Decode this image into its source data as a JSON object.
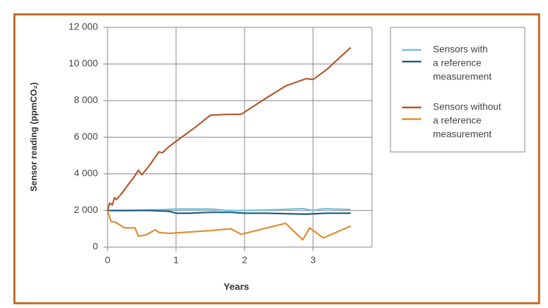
{
  "chart_data": {
    "type": "line",
    "y_label": "Sensor reading (ppmCO₂)",
    "x_label": "Years",
    "xlim": [
      0,
      3.86
    ],
    "xticks": [
      0,
      1,
      2,
      3
    ],
    "ylim": [
      0,
      12000
    ],
    "yticks": [
      0,
      {
        "value": 2000,
        "label": "2 000"
      },
      {
        "value": 4000,
        "label": "4 000"
      },
      {
        "value": 6000,
        "label": "6 000"
      },
      {
        "value": 8000,
        "label": "8 000"
      },
      {
        "value": 10000,
        "label": "10 000"
      },
      {
        "value": 12000,
        "label": "12 000"
      }
    ],
    "grid": true,
    "groups": [
      {
        "name_lines": [
          "Sensors with",
          "a reference",
          "measurement"
        ],
        "series": [
          {
            "color": "#6ec1dc",
            "x": [
              0,
              0.2,
              0.5,
              0.8,
              1.0,
              1.5,
              1.75,
              2.0,
              2.5,
              2.85,
              3.0,
              3.15,
              3.55
            ],
            "values": [
              2000,
              1980,
              2020,
              2050,
              2080,
              2080,
              2000,
              2000,
              2050,
              2100,
              2000,
              2100,
              2050
            ]
          },
          {
            "color": "#1d5a84",
            "x": [
              0,
              0.3,
              0.6,
              0.9,
              1.0,
              1.2,
              1.5,
              1.8,
              2.0,
              2.3,
              2.9,
              3.2,
              3.55
            ],
            "values": [
              2000,
              2000,
              2000,
              1950,
              1850,
              1850,
              1900,
              1900,
              1850,
              1850,
              1800,
              1850,
              1850
            ]
          }
        ]
      },
      {
        "name_lines": [
          "Sensors without",
          "a reference",
          "measurement"
        ],
        "series": [
          {
            "color": "#b5552a",
            "x": [
              0,
              0.03,
              0.07,
              0.1,
              0.13,
              0.2,
              0.3,
              0.4,
              0.45,
              0.5,
              0.6,
              0.75,
              0.8,
              0.9,
              1.3,
              1.5,
              1.75,
              1.95,
              2.3,
              2.6,
              2.9,
              3.0,
              3.2,
              3.55
            ],
            "values": [
              2000,
              2400,
              2300,
              2700,
              2600,
              2900,
              3400,
              3900,
              4200,
              3950,
              4400,
              5200,
              5150,
              5500,
              6600,
              7200,
              7250,
              7250,
              8100,
              8800,
              9200,
              9150,
              9700,
              10900
            ]
          },
          {
            "color": "#e08a2c",
            "x": [
              0,
              0.05,
              0.12,
              0.25,
              0.4,
              0.45,
              0.55,
              0.7,
              0.75,
              0.9,
              1.5,
              1.8,
              1.95,
              2.6,
              2.85,
              2.95,
              3.15,
              3.55
            ],
            "values": [
              2000,
              1400,
              1350,
              1050,
              1050,
              600,
              650,
              950,
              800,
              750,
              900,
              1000,
              700,
              1300,
              400,
              1050,
              500,
              1150
            ]
          }
        ]
      }
    ]
  }
}
